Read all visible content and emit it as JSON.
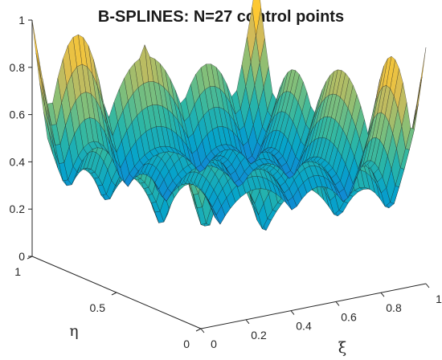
{
  "chart_data": {
    "type": "surface",
    "title": "B-SPLINES: N=27 control points",
    "xlabel": "ξ",
    "ylabel": "η",
    "zlabel": "",
    "xlim": [
      0,
      1
    ],
    "ylim": [
      0,
      1
    ],
    "zlim": [
      0,
      1
    ],
    "x_ticks": [
      "0",
      "0.2",
      "0.4",
      "0.6",
      "0.8",
      "1"
    ],
    "y_ticks": [
      "0",
      "0.5",
      "1"
    ],
    "z_ticks": [
      "0",
      "0.2",
      "0.4",
      "0.6",
      "0.8",
      "1"
    ],
    "colormap": "parula",
    "grid": false,
    "control_points": 27,
    "peak_values": [
      {
        "x": 0.0,
        "y": 1.0,
        "z": 1.0
      },
      {
        "x": 1.0,
        "y": 1.0,
        "z": 1.0
      },
      {
        "x": 1.0,
        "y": 0.0,
        "z": 0.8
      },
      {
        "x": 0.5,
        "y": 0.0,
        "z": 0.8
      },
      {
        "x": 0.5,
        "y": 1.0,
        "z": 0.8
      }
    ]
  },
  "colors": {
    "colormap_stops": [
      "#352a87",
      "#0f5cdd",
      "#1481d6",
      "#06a4ca",
      "#2eb7a4",
      "#87bf77",
      "#d1bb59",
      "#fec832",
      "#f9fb0e"
    ]
  }
}
